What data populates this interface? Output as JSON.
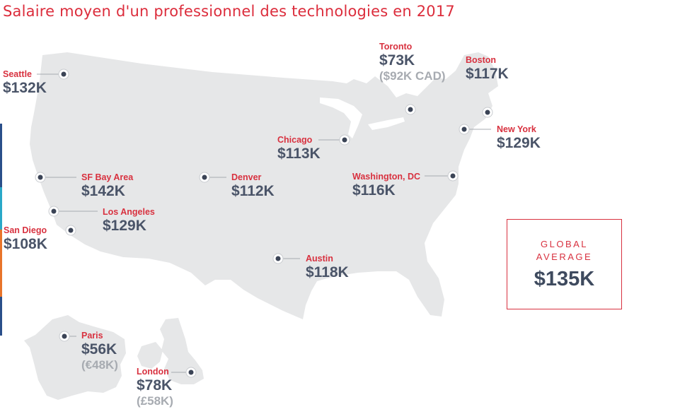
{
  "title": "Salaire moyen d'un professionnel des technologies en 2017",
  "colors": {
    "accent": "#d8313f",
    "value_text": "#4a5468",
    "land": "#e6e7e8",
    "marker": "#3b4456"
  },
  "cities": {
    "seattle": {
      "name": "Seattle",
      "salary": "$132K"
    },
    "toronto": {
      "name": "Toronto",
      "salary": "$73K",
      "local": "($92K CAD)"
    },
    "boston": {
      "name": "Boston",
      "salary": "$117K"
    },
    "new_york": {
      "name": "New York",
      "salary": "$129K"
    },
    "chicago": {
      "name": "Chicago",
      "salary": "$113K"
    },
    "sf_bay_area": {
      "name": "SF Bay Area",
      "salary": "$142K"
    },
    "denver": {
      "name": "Denver",
      "salary": "$112K"
    },
    "washington": {
      "name": "Washington, DC",
      "salary": "$116K"
    },
    "los_angeles": {
      "name": "Los Angeles",
      "salary": "$129K"
    },
    "san_diego": {
      "name": "San Diego",
      "salary": "$108K"
    },
    "austin": {
      "name": "Austin",
      "salary": "$118K"
    },
    "paris": {
      "name": "Paris",
      "salary": "$56K",
      "local": "(€48K)"
    },
    "london": {
      "name": "London",
      "salary": "$78K",
      "local": "(£58K)"
    }
  },
  "global_average": {
    "label_line1": "GLOBAL",
    "label_line2": "AVERAGE",
    "value": "$135K"
  }
}
